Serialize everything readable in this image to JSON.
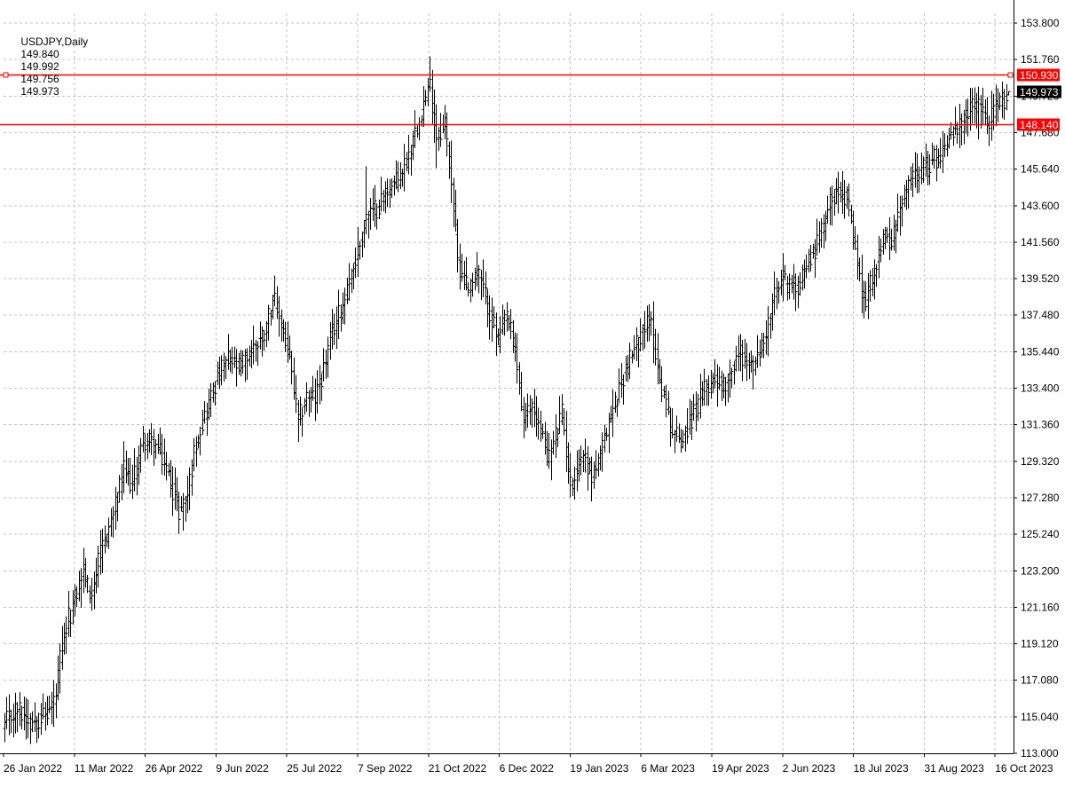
{
  "header": {
    "symbol": "USDJPY,Daily",
    "open": "149.840",
    "high": "149.992",
    "low": "149.756",
    "close": "149.973"
  },
  "colors": {
    "background": "#ffffff",
    "grid": "#c0c0c0",
    "bars": "#000000",
    "level_line": "#ff0000",
    "level_label_bg": "#ff0000",
    "level_label_text": "#ffffff",
    "price_label_bg": "#000000",
    "price_label_text": "#ffffff"
  },
  "chart_data": {
    "type": "ohlc",
    "title": "",
    "xlabel": "",
    "ylabel": "",
    "ylim": [
      113.0,
      153.8
    ],
    "y_ticks": [
      "153.800",
      "151.760",
      "149.720",
      "147.680",
      "145.640",
      "143.600",
      "141.560",
      "139.520",
      "137.480",
      "135.440",
      "133.400",
      "131.360",
      "129.320",
      "127.280",
      "125.240",
      "123.200",
      "121.160",
      "119.120",
      "117.080",
      "115.040",
      "113.000"
    ],
    "x_labels": [
      "26 Jan 2022",
      "11 Mar 2022",
      "26 Apr 2022",
      "9 Jun 2022",
      "25 Jul 2022",
      "7 Sep 2022",
      "21 Oct 2022",
      "6 Dec 2022",
      "19 Jan 2023",
      "6 Mar 2023",
      "19 Apr 2023",
      "2 Jun 2023",
      "18 Jul 2023",
      "31 Aug 2023",
      "16 Oct 2023"
    ],
    "grid": true,
    "horizontal_levels": [
      {
        "value": 150.93,
        "label": "150.930"
      },
      {
        "value": 148.14,
        "label": "148.140"
      }
    ],
    "current_price": {
      "value": 149.973,
      "label": "149.973"
    },
    "price_keyframes": [
      [
        0,
        114.6
      ],
      [
        6,
        115.5
      ],
      [
        12,
        114.8
      ],
      [
        20,
        115.2
      ],
      [
        24,
        116.2
      ],
      [
        26,
        118.2
      ],
      [
        30,
        120.5
      ],
      [
        34,
        122.0
      ],
      [
        37,
        123.3
      ],
      [
        40,
        121.8
      ],
      [
        46,
        124.5
      ],
      [
        52,
        126.8
      ],
      [
        56,
        128.8
      ],
      [
        60,
        128.0
      ],
      [
        65,
        130.5
      ],
      [
        70,
        130.3
      ],
      [
        74,
        129.5
      ],
      [
        78,
        128.2
      ],
      [
        82,
        126.5
      ],
      [
        86,
        127.5
      ],
      [
        90,
        130.5
      ],
      [
        95,
        132.2
      ],
      [
        100,
        134.0
      ],
      [
        105,
        135.0
      ],
      [
        110,
        134.5
      ],
      [
        116,
        135.5
      ],
      [
        122,
        136.5
      ],
      [
        126,
        138.5
      ],
      [
        130,
        137.0
      ],
      [
        134,
        135.0
      ],
      [
        138,
        131.5
      ],
      [
        142,
        133.0
      ],
      [
        146,
        132.8
      ],
      [
        150,
        134.5
      ],
      [
        154,
        136.5
      ],
      [
        160,
        138.5
      ],
      [
        166,
        141.0
      ],
      [
        170,
        143.0
      ],
      [
        175,
        143.5
      ],
      [
        180,
        144.5
      ],
      [
        185,
        145.0
      ],
      [
        190,
        146.5
      ],
      [
        196,
        149.0
      ],
      [
        200,
        150.3
      ],
      [
        203,
        147.5
      ],
      [
        207,
        148.2
      ],
      [
        210,
        145.0
      ],
      [
        213,
        140.5
      ],
      [
        218,
        139.0
      ],
      [
        222,
        140.0
      ],
      [
        226,
        138.5
      ],
      [
        232,
        136.0
      ],
      [
        236,
        137.5
      ],
      [
        240,
        135.5
      ],
      [
        244,
        131.5
      ],
      [
        248,
        132.5
      ],
      [
        252,
        131.0
      ],
      [
        256,
        129.5
      ],
      [
        262,
        132.0
      ],
      [
        266,
        128.0
      ],
      [
        272,
        129.8
      ],
      [
        276,
        128.5
      ],
      [
        280,
        129.5
      ],
      [
        284,
        131.5
      ],
      [
        288,
        133.0
      ],
      [
        292,
        134.5
      ],
      [
        296,
        135.5
      ],
      [
        300,
        136.8
      ],
      [
        304,
        137.0
      ],
      [
        307,
        134.5
      ],
      [
        310,
        133.0
      ],
      [
        314,
        131.0
      ],
      [
        318,
        130.5
      ],
      [
        322,
        131.5
      ],
      [
        326,
        132.5
      ],
      [
        330,
        133.5
      ],
      [
        334,
        134.0
      ],
      [
        338,
        133.5
      ],
      [
        342,
        134.5
      ],
      [
        346,
        135.5
      ],
      [
        350,
        134.5
      ],
      [
        354,
        135.0
      ],
      [
        358,
        136.5
      ],
      [
        362,
        138.5
      ],
      [
        366,
        139.5
      ],
      [
        372,
        139.0
      ],
      [
        376,
        140.0
      ],
      [
        382,
        141.5
      ],
      [
        387,
        143.5
      ],
      [
        392,
        144.8
      ],
      [
        396,
        144.0
      ],
      [
        400,
        141.0
      ],
      [
        404,
        138.2
      ],
      [
        408,
        139.5
      ],
      [
        412,
        141.5
      ],
      [
        418,
        142.0
      ],
      [
        424,
        144.5
      ],
      [
        428,
        145.5
      ],
      [
        434,
        145.8
      ],
      [
        440,
        146.5
      ],
      [
        444,
        147.5
      ],
      [
        450,
        148.0
      ],
      [
        454,
        149.0
      ],
      [
        458,
        149.5
      ],
      [
        462,
        148.2
      ],
      [
        466,
        149.0
      ],
      [
        470,
        149.6
      ],
      [
        472,
        149.973
      ]
    ],
    "price_spikes": [
      {
        "i": 200,
        "high": 151.94
      },
      {
        "i": 203,
        "low": 145.7
      },
      {
        "i": 138,
        "low": 130.4
      },
      {
        "i": 266,
        "low": 127.3
      },
      {
        "i": 404,
        "low": 137.3
      },
      {
        "i": 458,
        "low": 147.3
      },
      {
        "i": 170,
        "high": 145.8
      }
    ]
  }
}
